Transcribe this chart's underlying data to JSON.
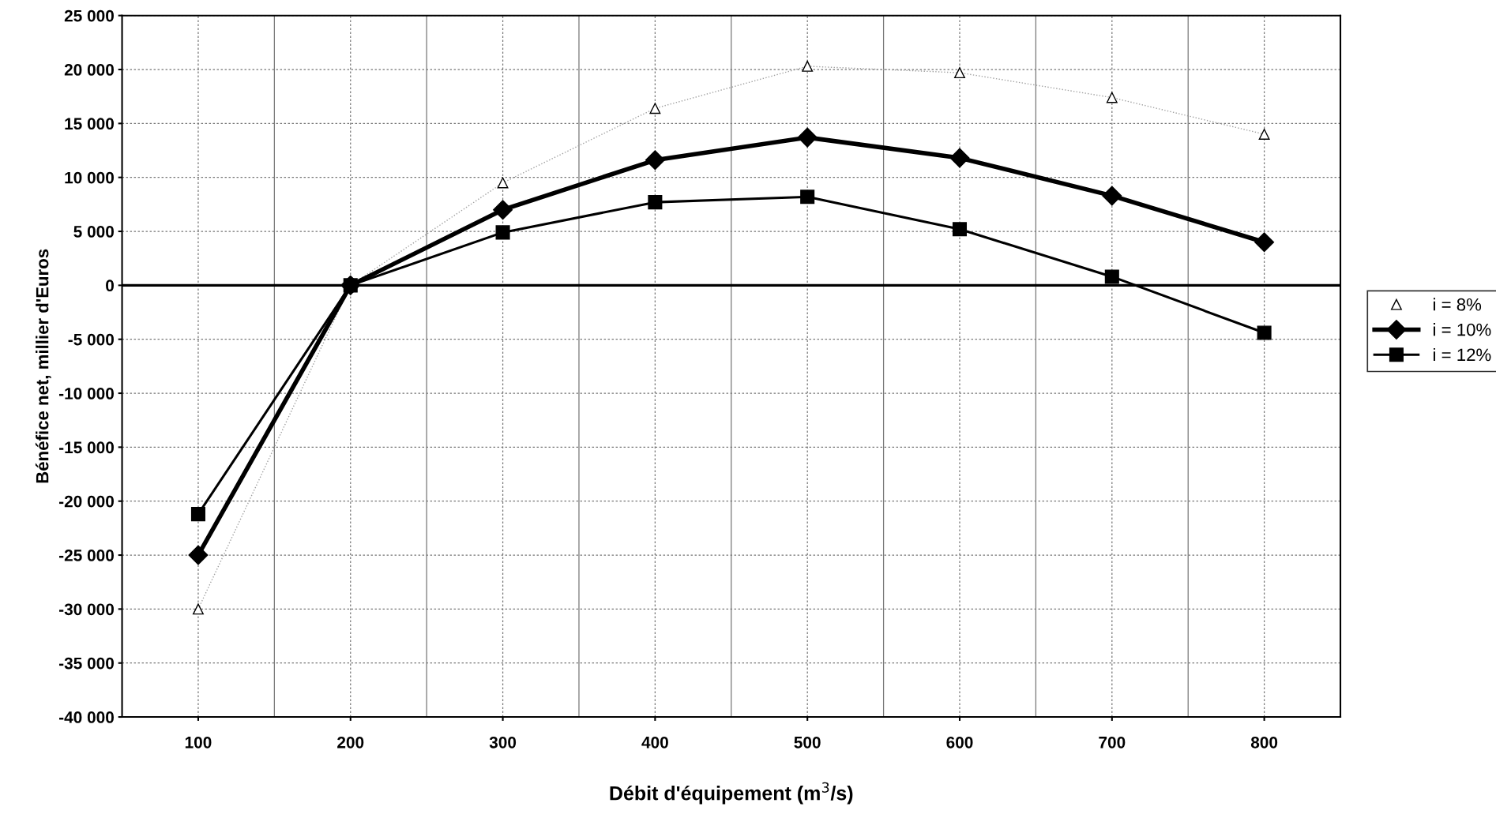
{
  "chart_data": {
    "type": "line",
    "xlabel": "Débit d'équipement (m$^{3}$/s)",
    "ylabel": "Bénéfice net, millier d'Euros",
    "categories": [
      "100",
      "200",
      "300",
      "400",
      "500",
      "600",
      "700",
      "800"
    ],
    "series": [
      {
        "name": "i = 8%",
        "color": "#000000",
        "marker": "triangle",
        "line_style": "dotted",
        "values": [
          -30000,
          0,
          9500,
          16400,
          20300,
          19700,
          17400,
          14000
        ]
      },
      {
        "name": "i = 10%",
        "color": "#000000",
        "marker": "diamond",
        "line_style": "solid",
        "values": [
          -25000,
          0,
          7000,
          11600,
          13700,
          11800,
          8300,
          4000
        ]
      },
      {
        "name": "i = 12%",
        "color": "#000000",
        "marker": "square",
        "line_style": "solid",
        "values": [
          -21200,
          0,
          4900,
          7700,
          8200,
          5200,
          800,
          -4400
        ]
      }
    ],
    "ylim": [
      -40000,
      25000
    ],
    "yticks": [
      {
        "value": -40000,
        "label": "-40 000"
      },
      {
        "value": -35000,
        "label": "-35 000"
      },
      {
        "value": -30000,
        "label": "-30 000"
      },
      {
        "value": -25000,
        "label": "-25 000"
      },
      {
        "value": -20000,
        "label": "-20 000"
      },
      {
        "value": -15000,
        "label": "-15 000"
      },
      {
        "value": -10000,
        "label": "-10 000"
      },
      {
        "value": -5000,
        "label": "-5 000"
      },
      0,
      {
        "value": 5000,
        "label": "5 000"
      },
      {
        "value": 10000,
        "label": "10 000"
      },
      {
        "value": 15000,
        "label": "15 000"
      },
      {
        "value": 20000,
        "label": "20 000"
      },
      {
        "value": 25000,
        "label": "25 000"
      }
    ],
    "ref_lines": [
      {
        "axis": "y",
        "value": 0,
        "color": "#000000"
      }
    ],
    "grid": true,
    "legend": "right"
  }
}
